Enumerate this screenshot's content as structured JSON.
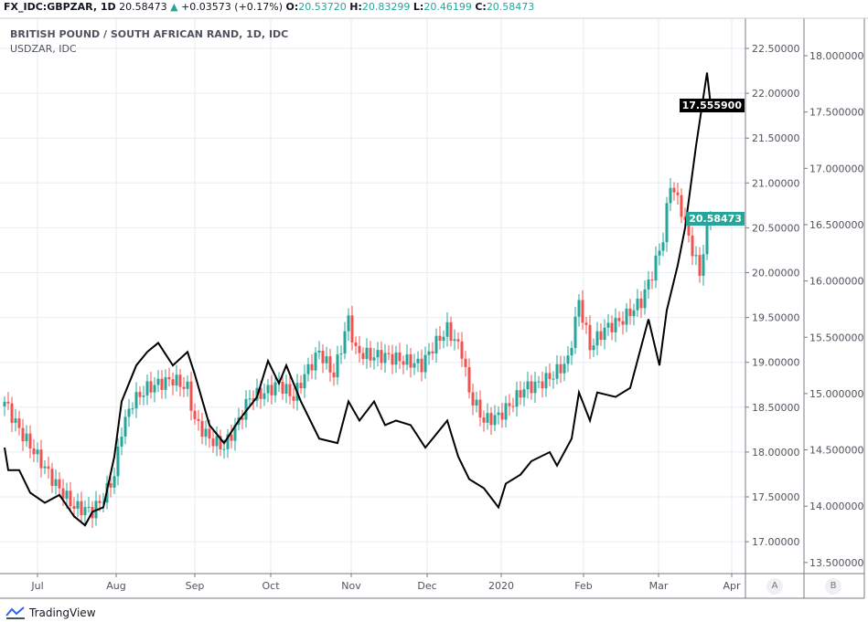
{
  "header": {
    "symbol": "FX_IDC:GBPZAR, 1D",
    "last": "20.58473",
    "change": "+0.03573 (+0.17%)",
    "o_label": "O:",
    "o": "20.53720",
    "h_label": "H:",
    "h": "20.83299",
    "l_label": "L:",
    "l": "20.46199",
    "c_label": "C:",
    "c": "20.58473"
  },
  "legend": {
    "title": "BRITISH POUND / SOUTH AFRICAN RAND, 1D, IDC",
    "secondary": "USDZAR, IDC"
  },
  "price_tags": {
    "usdzar": "17.555900",
    "gbpzar": "20.58473"
  },
  "pane_buttons": [
    "A",
    "B"
  ],
  "brand": "TradingView",
  "colors": {
    "up": "#26a69a",
    "down": "#ef5350",
    "line": "#000000",
    "grid": "#e6edf3"
  },
  "chart_data": {
    "type": "candlestick+line",
    "title": "BRITISH POUND / SOUTH AFRICAN RAND, 1D, IDC",
    "x_ticks": [
      {
        "label": "Jul",
        "day": 9
      },
      {
        "label": "Aug",
        "day": 30.5
      },
      {
        "label": "Sep",
        "day": 52
      },
      {
        "label": "Oct",
        "day": 72.75
      },
      {
        "label": "Nov",
        "day": 94.75
      },
      {
        "label": "Dec",
        "day": 115.5
      },
      {
        "label": "2020",
        "day": 135.75
      },
      {
        "label": "Feb",
        "day": 158.25
      },
      {
        "label": "Mar",
        "day": 178.75
      },
      {
        "label": "Apr",
        "day": 198.75
      }
    ],
    "left_axis": {
      "range": [
        16.6,
        22.83
      ],
      "ticks": [
        "22.50000",
        "22.00000",
        "21.50000",
        "21.00000",
        "20.50000",
        "20.00000",
        "19.50000",
        "19.00000",
        "18.50000",
        "18.00000",
        "17.50000",
        "17.00000"
      ]
    },
    "right_axis": {
      "range": [
        13.3,
        18.4
      ],
      "ticks": [
        "18.000000",
        "17.500000",
        "17.000000",
        "16.500000",
        "16.000000",
        "15.500000",
        "15.000000",
        "14.500000",
        "14.000000",
        "13.500000"
      ]
    },
    "gbpzar_closes": [
      [
        0,
        18.56
      ],
      [
        4,
        18.25
      ],
      [
        9,
        17.95
      ],
      [
        14,
        17.64
      ],
      [
        19,
        17.39
      ],
      [
        24,
        17.34
      ],
      [
        27,
        17.49
      ],
      [
        30,
        17.74
      ],
      [
        32,
        18.25
      ],
      [
        35,
        18.56
      ],
      [
        39,
        18.71
      ],
      [
        42,
        18.76
      ],
      [
        46,
        18.81
      ],
      [
        50,
        18.71
      ],
      [
        52,
        18.35
      ],
      [
        56,
        18.15
      ],
      [
        60,
        18.05
      ],
      [
        64,
        18.35
      ],
      [
        67,
        18.61
      ],
      [
        71,
        18.66
      ],
      [
        75,
        18.76
      ],
      [
        79,
        18.61
      ],
      [
        82,
        18.86
      ],
      [
        86,
        19.12
      ],
      [
        90,
        18.86
      ],
      [
        94,
        19.48
      ],
      [
        96,
        19.12
      ],
      [
        100,
        19.07
      ],
      [
        104,
        19.07
      ],
      [
        109,
        19.02
      ],
      [
        114,
        18.97
      ],
      [
        117,
        19.17
      ],
      [
        121,
        19.37
      ],
      [
        125,
        19.12
      ],
      [
        127,
        18.66
      ],
      [
        131,
        18.35
      ],
      [
        135,
        18.4
      ],
      [
        139,
        18.56
      ],
      [
        142,
        18.71
      ],
      [
        146,
        18.76
      ],
      [
        150,
        18.86
      ],
      [
        154,
        19.02
      ],
      [
        157,
        19.68
      ],
      [
        160,
        19.17
      ],
      [
        164,
        19.37
      ],
      [
        169,
        19.48
      ],
      [
        174,
        19.68
      ],
      [
        177,
        19.99
      ],
      [
        180,
        20.39
      ],
      [
        182,
        21.0
      ],
      [
        185,
        20.7
      ],
      [
        187,
        20.39
      ],
      [
        190,
        19.99
      ],
      [
        192,
        20.5
      ],
      [
        193,
        20.58
      ]
    ],
    "usdzar_closes": [
      [
        0,
        14.52
      ],
      [
        1,
        14.32
      ],
      [
        4,
        14.32
      ],
      [
        7,
        14.12
      ],
      [
        11,
        14.03
      ],
      [
        15,
        14.1
      ],
      [
        19,
        13.91
      ],
      [
        22,
        13.83
      ],
      [
        24,
        13.95
      ],
      [
        27,
        13.99
      ],
      [
        30,
        14.44
      ],
      [
        32,
        14.93
      ],
      [
        36,
        15.25
      ],
      [
        39,
        15.37
      ],
      [
        42,
        15.45
      ],
      [
        46,
        15.25
      ],
      [
        50,
        15.37
      ],
      [
        52,
        15.17
      ],
      [
        56,
        14.72
      ],
      [
        60,
        14.56
      ],
      [
        64,
        14.76
      ],
      [
        69,
        14.97
      ],
      [
        72,
        15.29
      ],
      [
        75,
        15.09
      ],
      [
        77,
        15.25
      ],
      [
        81,
        14.93
      ],
      [
        86,
        14.6
      ],
      [
        91,
        14.56
      ],
      [
        94,
        14.93
      ],
      [
        97,
        14.76
      ],
      [
        101,
        14.93
      ],
      [
        104,
        14.72
      ],
      [
        107,
        14.76
      ],
      [
        111,
        14.72
      ],
      [
        115,
        14.52
      ],
      [
        117,
        14.6
      ],
      [
        121,
        14.76
      ],
      [
        124,
        14.44
      ],
      [
        127,
        14.24
      ],
      [
        131,
        14.16
      ],
      [
        135,
        13.99
      ],
      [
        137,
        14.2
      ],
      [
        141,
        14.28
      ],
      [
        144,
        14.4
      ],
      [
        149,
        14.48
      ],
      [
        151,
        14.36
      ],
      [
        155,
        14.6
      ],
      [
        157,
        15.01
      ],
      [
        160,
        14.76
      ],
      [
        162,
        15.01
      ],
      [
        167,
        14.97
      ],
      [
        171,
        15.05
      ],
      [
        176,
        15.66
      ],
      [
        179,
        15.25
      ],
      [
        181,
        15.74
      ],
      [
        184,
        16.14
      ],
      [
        186,
        16.47
      ],
      [
        189,
        17.2
      ],
      [
        192,
        17.85
      ],
      [
        193,
        17.56
      ]
    ]
  }
}
